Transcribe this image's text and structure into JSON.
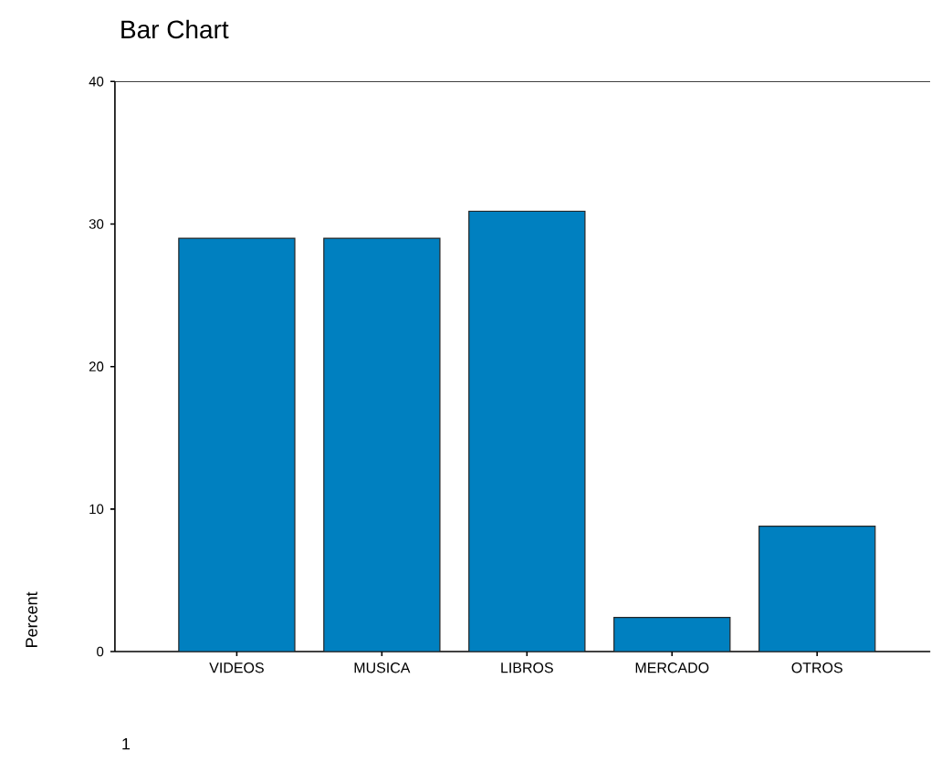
{
  "chart_data": {
    "type": "bar",
    "title": "Bar Chart",
    "ylabel": "Percent",
    "categories": [
      "VIDEOS",
      "MUSICA",
      "LIBROS",
      "MERCADO",
      "OTROS"
    ],
    "values": [
      29.0,
      29.0,
      30.9,
      2.4,
      8.8
    ],
    "color": "#0080c0",
    "ylim": [
      0,
      40
    ],
    "yticks": [
      0,
      10,
      20,
      30,
      40
    ],
    "grid": false,
    "annotations": [
      "1"
    ]
  }
}
